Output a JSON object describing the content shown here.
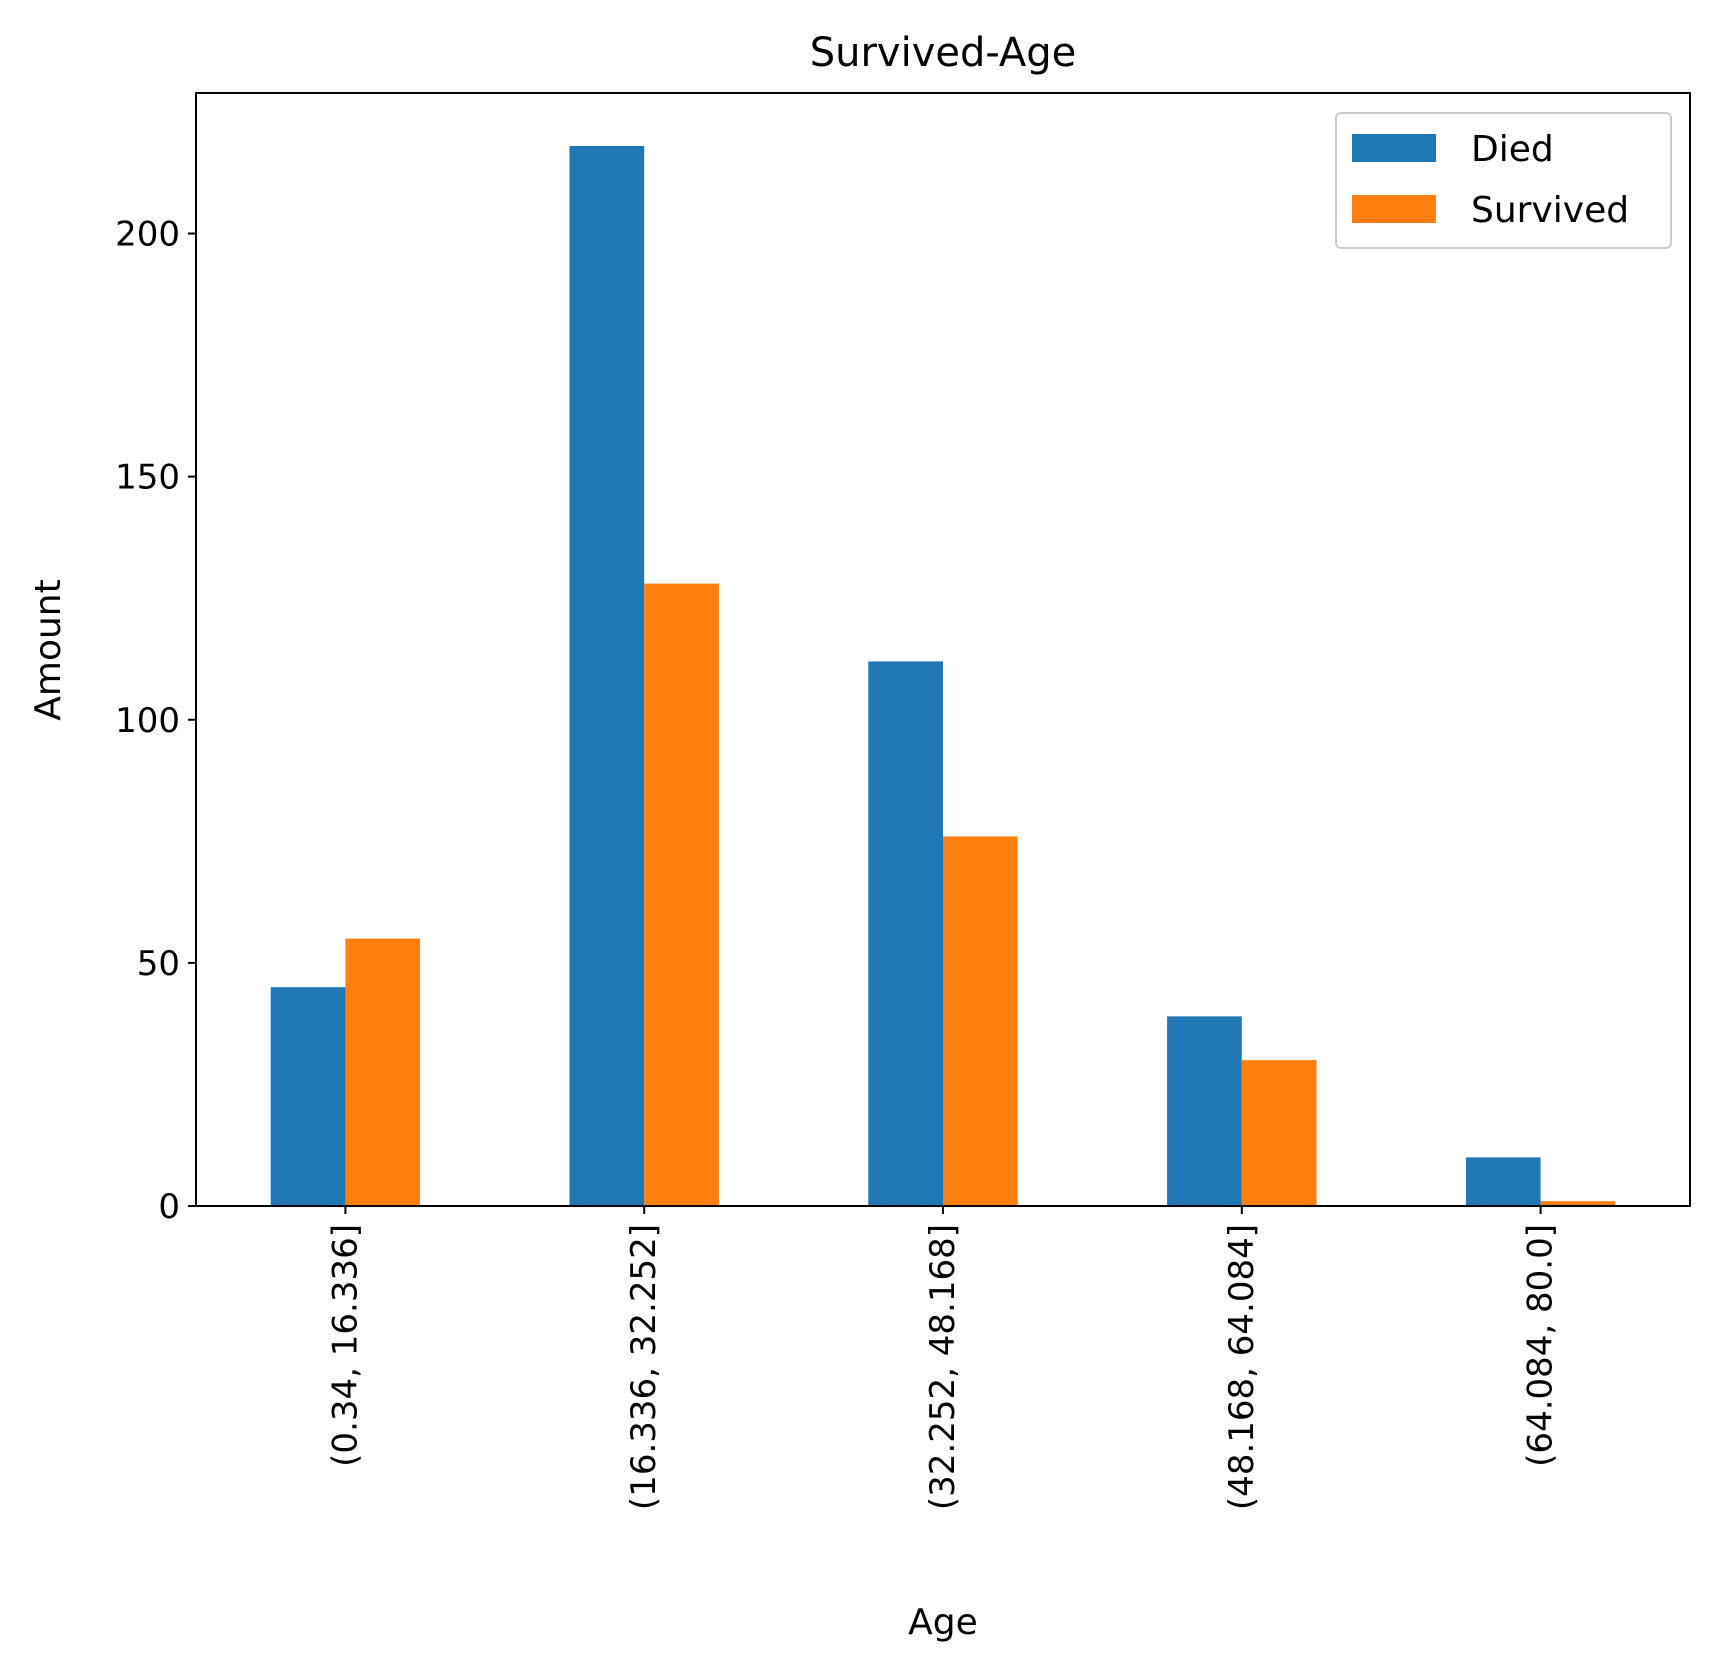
{
  "chart_data": {
    "type": "bar",
    "title": "Survived-Age",
    "xlabel": "Age",
    "ylabel": "Amount",
    "categories": [
      "(0.34, 16.336]",
      "(16.336, 32.252]",
      "(32.252, 48.168]",
      "(48.168, 64.084]",
      "(64.084, 80.0]"
    ],
    "series": [
      {
        "name": "Died",
        "color": "#1f77b4",
        "values": [
          45,
          218,
          112,
          39,
          10
        ]
      },
      {
        "name": "Survived",
        "color": "#ff7f0e",
        "values": [
          55,
          128,
          76,
          30,
          1
        ]
      }
    ],
    "yticks": [
      0,
      50,
      100,
      150,
      200
    ],
    "ylim": [
      0,
      228.9
    ],
    "legend_position": "top-right",
    "grid": false
  }
}
